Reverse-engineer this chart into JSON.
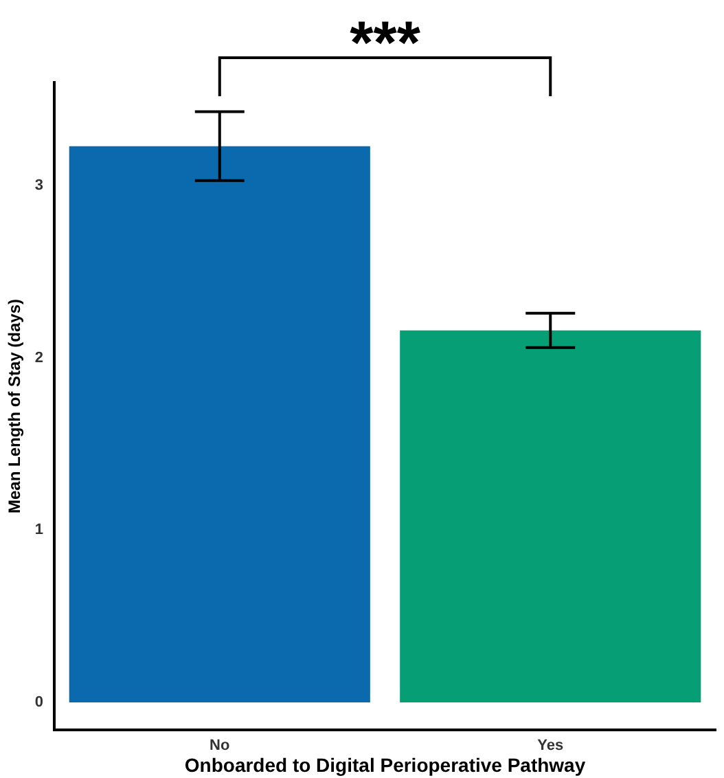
{
  "chart_data": {
    "type": "bar",
    "xlabel": "Onboarded to Digital Perioperative Pathway",
    "ylabel": "Mean Length of Stay (days)",
    "categories": [
      "No",
      "Yes"
    ],
    "values": [
      3.23,
      2.16
    ],
    "colors": [
      "#0a6aad",
      "#069e74"
    ],
    "errors": [
      0.2,
      0.1
    ],
    "ylim": [
      -0.16,
      3.6
    ],
    "yticks": [
      0,
      1,
      2,
      3
    ],
    "grid": false,
    "legend": false,
    "annotations": [
      "***"
    ]
  }
}
